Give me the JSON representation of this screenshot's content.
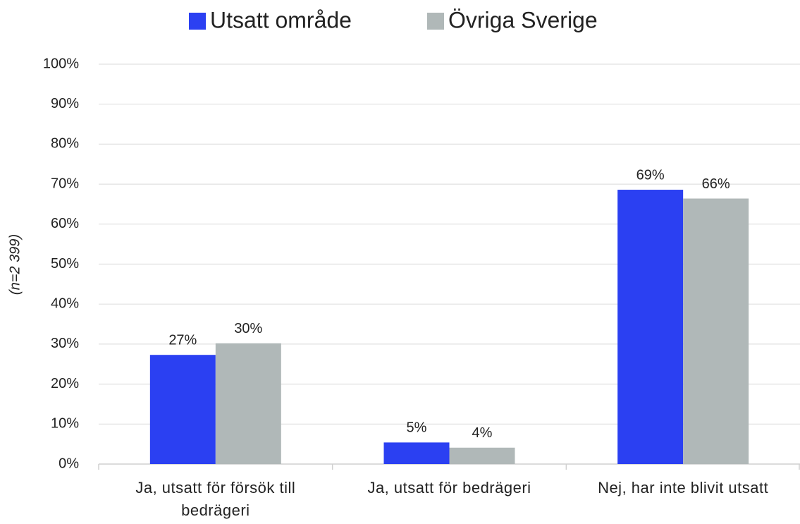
{
  "chart_data": {
    "type": "bar",
    "y_label": "(n=2 399)",
    "categories": [
      "Ja, utsatt för försök till bedrägeri",
      "Ja, utsatt för bedrägeri",
      "Nej, har inte blivit utsatt"
    ],
    "series": [
      {
        "name": "Utsatt område",
        "color": "#2b40f2",
        "values": [
          27.3,
          5.4,
          68.6
        ],
        "value_labels": [
          "27%",
          "5%",
          "69%"
        ]
      },
      {
        "name": "Övriga Sverige",
        "color": "#b0b8b8",
        "values": [
          30.2,
          4.1,
          66.4
        ],
        "value_labels": [
          "30%",
          "4%",
          "66%"
        ]
      }
    ],
    "ylim": [
      0,
      100
    ],
    "yticks": [
      {
        "value": 0,
        "label": "0%"
      },
      {
        "value": 10,
        "label": "10%"
      },
      {
        "value": 20,
        "label": "20%"
      },
      {
        "value": 30,
        "label": "30%"
      },
      {
        "value": 40,
        "label": "40%"
      },
      {
        "value": 50,
        "label": "50%"
      },
      {
        "value": 60,
        "label": "60%"
      },
      {
        "value": 70,
        "label": "70%"
      },
      {
        "value": 80,
        "label": "80%"
      },
      {
        "value": 90,
        "label": "90%"
      },
      {
        "value": 100,
        "label": "100%"
      }
    ],
    "grid": true,
    "legend": "top"
  }
}
